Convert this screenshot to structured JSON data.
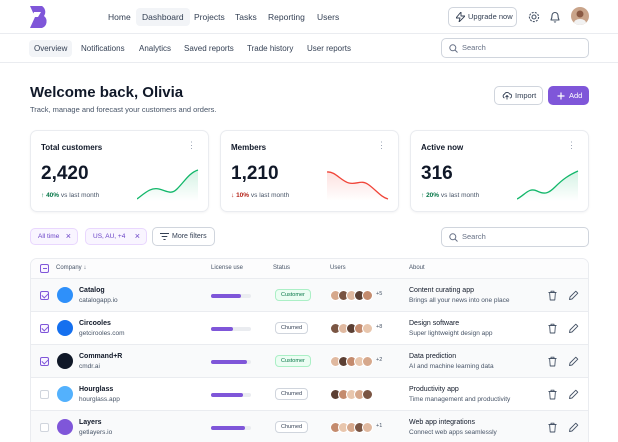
{
  "nav": {
    "items": [
      {
        "label": "Home",
        "active": false
      },
      {
        "label": "Dashboard",
        "active": true
      },
      {
        "label": "Projects",
        "active": false
      },
      {
        "label": "Tasks",
        "active": false
      },
      {
        "label": "Reporting",
        "active": false
      },
      {
        "label": "Users",
        "active": false
      }
    ],
    "upgrade_label": "Upgrade now"
  },
  "subnav": {
    "items": [
      {
        "label": "Overview",
        "active": true
      },
      {
        "label": "Notifications",
        "active": false
      },
      {
        "label": "Analytics",
        "active": false
      },
      {
        "label": "Saved reports",
        "active": false
      },
      {
        "label": "Trade history",
        "active": false
      },
      {
        "label": "User reports",
        "active": false
      }
    ],
    "search_placeholder": "Search"
  },
  "header": {
    "title": "Welcome back, Olivia",
    "subtitle": "Track, manage and forecast your customers and orders.",
    "import_label": "Import",
    "add_label": "Add"
  },
  "stats": [
    {
      "title": "Total customers",
      "value": "2,420",
      "delta": "40%",
      "delta_suffix": "vs last month",
      "trend": "up"
    },
    {
      "title": "Members",
      "value": "1,210",
      "delta": "10%",
      "delta_suffix": "vs last month",
      "trend": "down"
    },
    {
      "title": "Active now",
      "value": "316",
      "delta": "20%",
      "delta_suffix": "vs last month",
      "trend": "up"
    }
  ],
  "filters": {
    "chips": [
      {
        "label": "All time"
      },
      {
        "label": "US, AU, +4"
      }
    ],
    "more_label": "More filters",
    "search_placeholder": "Search"
  },
  "table": {
    "headers": {
      "company": "Company",
      "license": "License use",
      "status": "Status",
      "users": "Users",
      "about": "About"
    },
    "rows": [
      {
        "checked": true,
        "name": "Catalog",
        "url": "catalogapp.io",
        "license": 0.75,
        "status": "Customer",
        "more": "+5",
        "about_title": "Content curating app",
        "about_desc": "Brings all your news into one place",
        "logo_color": "#2e90fa"
      },
      {
        "checked": true,
        "name": "Circooles",
        "url": "getcirooles.com",
        "license": 0.55,
        "status": "Churned",
        "more": "+8",
        "about_title": "Design software",
        "about_desc": "Super lightweight design app",
        "logo_color": "#1570ef"
      },
      {
        "checked": true,
        "name": "Command+R",
        "url": "cmdr.ai",
        "license": 0.9,
        "status": "Customer",
        "more": "+2",
        "about_title": "Data prediction",
        "about_desc": "AI and machine learning data",
        "logo_color": "#101828"
      },
      {
        "checked": false,
        "name": "Hourglass",
        "url": "hourglass.app",
        "license": 0.8,
        "status": "Churned",
        "more": "",
        "about_title": "Productivity app",
        "about_desc": "Time management and productivity",
        "logo_color": "#53b1fd"
      },
      {
        "checked": false,
        "name": "Layers",
        "url": "getlayers.io",
        "license": 0.85,
        "status": "Churned",
        "more": "+1",
        "about_title": "Web app integrations",
        "about_desc": "Connect web apps seamlessly",
        "logo_color": "#7f56d9"
      }
    ]
  },
  "colors": {
    "brand": "#7f56d9",
    "success": "#12b76a",
    "error": "#f04438"
  }
}
